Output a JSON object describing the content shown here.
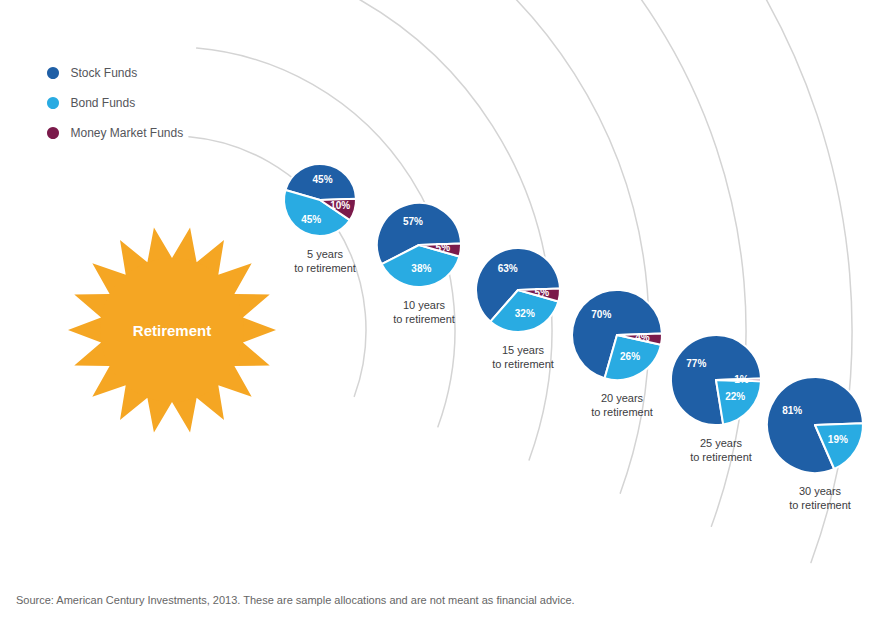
{
  "chart_data": [
    {
      "type": "pie",
      "title": "5 years\nto retirement",
      "categories": [
        "Stock Funds",
        "Bond Funds",
        "Money Market Funds"
      ],
      "values": [
        45,
        45,
        10
      ],
      "value_labels": [
        "45%",
        "45%",
        "10%"
      ],
      "colors": [
        "#1f5fa6",
        "#29abe2",
        "#7b1a4b"
      ],
      "data_labels": true,
      "legend": "top-left",
      "annotations": [
        "Retirement",
        "Source: American Century Investments, 2013. These are sample allocations and are not meant as financial advice."
      ]
    },
    {
      "type": "pie",
      "title": "10 years\nto retirement",
      "categories": [
        "Stock Funds",
        "Bond Funds",
        "Money Market Funds"
      ],
      "values": [
        57,
        38,
        5
      ],
      "value_labels": [
        "57%",
        "38%",
        "5%"
      ],
      "colors": [
        "#1f5fa6",
        "#29abe2",
        "#7b1a4b"
      ],
      "data_labels": true
    },
    {
      "type": "pie",
      "title": "15 years\nto retirement",
      "categories": [
        "Stock Funds",
        "Bond Funds",
        "Money Market Funds"
      ],
      "values": [
        63,
        32,
        5
      ],
      "value_labels": [
        "63%",
        "32%",
        "5%"
      ],
      "colors": [
        "#1f5fa6",
        "#29abe2",
        "#7b1a4b"
      ],
      "data_labels": true
    },
    {
      "type": "pie",
      "title": "20 years\nto retirement",
      "categories": [
        "Stock Funds",
        "Bond Funds",
        "Money Market Funds"
      ],
      "values": [
        70,
        26,
        4
      ],
      "value_labels": [
        "70%",
        "26%",
        "4%"
      ],
      "colors": [
        "#1f5fa6",
        "#29abe2",
        "#7b1a4b"
      ],
      "data_labels": true
    },
    {
      "type": "pie",
      "title": "25 years\nto retirement",
      "categories": [
        "Stock Funds",
        "Bond Funds",
        "Money Market Funds"
      ],
      "values": [
        77,
        22,
        1
      ],
      "value_labels": [
        "77%",
        "22%",
        "1%"
      ],
      "colors": [
        "#1f5fa6",
        "#29abe2",
        "#7b1a4b"
      ],
      "data_labels": true
    },
    {
      "type": "pie",
      "title": "30 years\nto retirement",
      "categories": [
        "Stock Funds",
        "Bond Funds"
      ],
      "values": [
        81,
        19
      ],
      "value_labels": [
        "81%",
        "19%"
      ],
      "colors": [
        "#1f5fa6",
        "#29abe2"
      ],
      "data_labels": true
    }
  ]
}
